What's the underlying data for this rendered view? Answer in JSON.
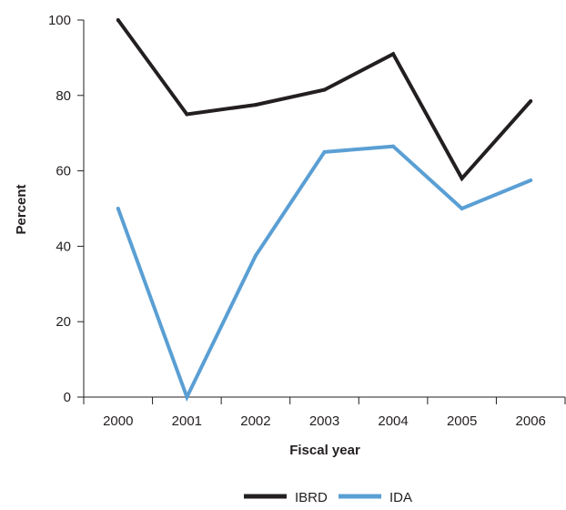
{
  "chart_data": {
    "type": "line",
    "xlabel": "Fiscal year",
    "ylabel": "Percent",
    "ylim": [
      0,
      100
    ],
    "yticks": [
      0,
      20,
      40,
      60,
      80,
      100
    ],
    "categories": [
      "2000",
      "2001",
      "2002",
      "2003",
      "2004",
      "2005",
      "2006"
    ],
    "grid": false,
    "legend_position": "bottom-center",
    "series": [
      {
        "name": "IBRD",
        "color": "#231f20",
        "values": [
          100,
          75,
          77.5,
          81.5,
          91,
          58,
          78.5
        ]
      },
      {
        "name": "IDA",
        "color": "#5a9fd4",
        "values": [
          50,
          0,
          37.5,
          65,
          66.5,
          50,
          57.5
        ]
      }
    ]
  }
}
